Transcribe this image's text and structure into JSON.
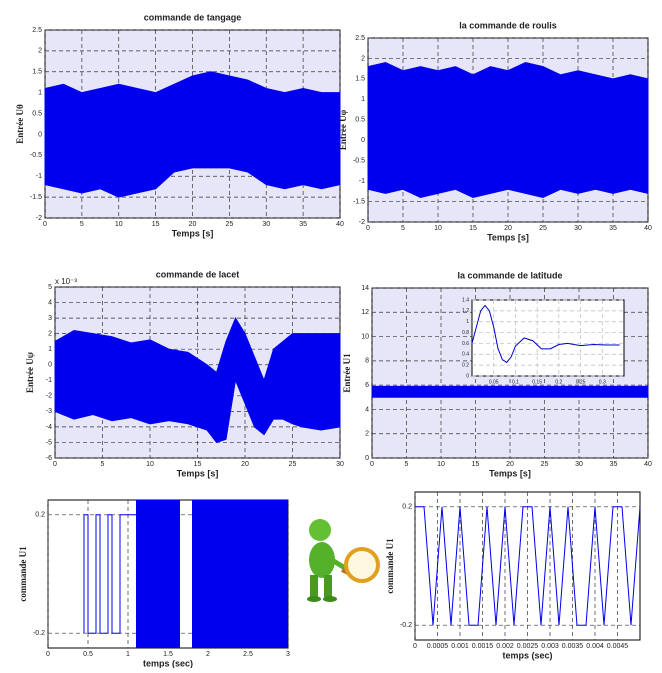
{
  "chart_data": [
    {
      "type": "band",
      "title": "commande de tangage",
      "xlabel": "Temps [s]",
      "ylabel": "Entrée Uθ",
      "color": "#0000ee",
      "grid": true,
      "xlim": [
        0,
        40
      ],
      "ylim": [
        -2,
        2.5
      ],
      "xticks": [
        0,
        5,
        10,
        15,
        20,
        25,
        30,
        35,
        40
      ],
      "yticks": [
        -2,
        -1.5,
        -1,
        -0.5,
        0,
        0.5,
        1,
        1.5,
        2,
        2.5
      ],
      "x": [
        0,
        2.5,
        5,
        7.5,
        10,
        12.5,
        15,
        17.5,
        20,
        22.5,
        25,
        27.5,
        30,
        32.5,
        35,
        37.5,
        40
      ],
      "upper": [
        1.1,
        1.2,
        1.0,
        1.1,
        1.2,
        1.1,
        1.0,
        1.2,
        1.4,
        1.5,
        1.4,
        1.3,
        1.1,
        1.0,
        1.1,
        1.0,
        1.0
      ],
      "lower": [
        -1.2,
        -1.3,
        -1.4,
        -1.3,
        -1.5,
        -1.4,
        -1.3,
        -0.9,
        -0.8,
        -0.8,
        -0.8,
        -0.9,
        -1.2,
        -1.3,
        -1.2,
        -1.3,
        -1.2
      ]
    },
    {
      "type": "band",
      "title": "la commande de roulis",
      "xlabel": "Temps [s]",
      "ylabel": "Entrée Uφ",
      "color": "#0000ee",
      "grid": true,
      "xlim": [
        0,
        40
      ],
      "ylim": [
        -2,
        2.5
      ],
      "xticks": [
        0,
        5,
        10,
        15,
        20,
        25,
        30,
        35,
        40
      ],
      "yticks": [
        -2,
        -1.5,
        -1,
        -0.5,
        0,
        0.5,
        1,
        1.5,
        2,
        2.5
      ],
      "x": [
        0,
        2.5,
        5,
        7.5,
        10,
        12.5,
        15,
        17.5,
        20,
        22.5,
        25,
        27.5,
        30,
        32.5,
        35,
        37.5,
        40
      ],
      "upper": [
        1.8,
        1.9,
        1.7,
        1.8,
        1.7,
        1.8,
        1.6,
        1.8,
        1.7,
        1.9,
        1.8,
        1.6,
        1.7,
        1.6,
        1.5,
        1.6,
        1.5
      ],
      "lower": [
        -1.2,
        -1.3,
        -1.2,
        -1.4,
        -1.3,
        -1.2,
        -1.4,
        -1.3,
        -1.2,
        -1.3,
        -1.4,
        -1.2,
        -1.3,
        -1.2,
        -1.3,
        -1.2,
        -1.3
      ]
    },
    {
      "type": "band",
      "title": "commande de lacet",
      "xlabel": "Temps [s]",
      "ylabel": "Entrée Uψ",
      "y_multiplier": "x 10⁻³",
      "color": "#0000ee",
      "grid": true,
      "xlim": [
        0,
        30
      ],
      "ylim": [
        -6,
        5
      ],
      "xticks": [
        0,
        5,
        10,
        15,
        20,
        25,
        30
      ],
      "yticks": [
        -6,
        -5,
        -4,
        -3,
        -2,
        -1,
        0,
        1,
        2,
        3,
        4,
        5
      ],
      "x": [
        0,
        2,
        4,
        6,
        8,
        10,
        12,
        14,
        16,
        17,
        18,
        19,
        20,
        21,
        22,
        23,
        24,
        25,
        26,
        28,
        30
      ],
      "upper": [
        1.5,
        2.2,
        2.0,
        1.8,
        1.4,
        1.6,
        1.0,
        0.8,
        0.0,
        -0.5,
        1.5,
        3.0,
        2.0,
        0.5,
        -1.0,
        1.0,
        1.5,
        2.0,
        2.0,
        2.0,
        2.0
      ],
      "lower": [
        -3.0,
        -3.5,
        -3.2,
        -3.6,
        -3.4,
        -3.8,
        -3.6,
        -3.8,
        -4.2,
        -5.0,
        -4.8,
        -1.0,
        -2.5,
        -4.0,
        -4.5,
        -3.5,
        -3.5,
        -3.8,
        -4.0,
        -4.2,
        -4.0
      ]
    },
    {
      "type": "band",
      "title": "la commande de latitude",
      "xlabel": "Temps [s]",
      "ylabel": "Entrée U1",
      "color": "#0000ee",
      "grid": true,
      "xlim": [
        0,
        40
      ],
      "ylim": [
        0,
        14
      ],
      "xticks": [
        0,
        5,
        10,
        15,
        20,
        25,
        30,
        35,
        40
      ],
      "yticks": [
        0,
        2,
        4,
        6,
        8,
        10,
        12,
        14
      ],
      "x": [
        0,
        40
      ],
      "upper": [
        5.9,
        5.9
      ],
      "lower": [
        5.0,
        5.0
      ]
    },
    {
      "type": "line",
      "color": "#0000cc",
      "grid": true,
      "xlim": [
        0,
        0.35
      ],
      "ylim": [
        0,
        1.4
      ],
      "xticks": [
        0.05,
        0.1,
        0.15,
        0.2,
        0.25,
        0.3
      ],
      "yticks": [
        0,
        0.2,
        0.4,
        0.6,
        0.8,
        1,
        1.2,
        1.4
      ],
      "x": [
        0,
        0.01,
        0.02,
        0.03,
        0.04,
        0.05,
        0.06,
        0.07,
        0.08,
        0.09,
        0.1,
        0.12,
        0.14,
        0.16,
        0.18,
        0.2,
        0.22,
        0.25,
        0.28,
        0.31,
        0.34
      ],
      "values": [
        0.6,
        0.9,
        1.2,
        1.3,
        1.2,
        0.9,
        0.5,
        0.3,
        0.25,
        0.35,
        0.55,
        0.7,
        0.65,
        0.5,
        0.5,
        0.58,
        0.6,
        0.56,
        0.58,
        0.57,
        0.57
      ]
    },
    {
      "type": "line",
      "xlabel": "temps (sec)",
      "ylabel": "commande U1",
      "color": "#0000ee",
      "grid": true,
      "xlim": [
        0,
        3
      ],
      "ylim": [
        -0.25,
        0.25
      ],
      "xticks": [
        0,
        0.5,
        1,
        1.5,
        2,
        2.5,
        3
      ],
      "yticks": [
        -0.2,
        0.2
      ],
      "x": [
        0.45,
        0.45,
        0.5,
        0.5,
        0.6,
        0.6,
        0.65,
        0.65,
        0.75,
        0.75,
        0.8,
        0.8,
        0.9,
        0.9,
        1.1
      ],
      "values": [
        -0.2,
        0.2,
        0.2,
        -0.2,
        -0.2,
        0.2,
        0.2,
        -0.2,
        -0.2,
        0.2,
        0.2,
        -0.2,
        -0.2,
        0.2,
        0.2
      ],
      "fill_ranges": [
        [
          1.1,
          1.65
        ],
        [
          1.8,
          3
        ]
      ]
    },
    {
      "type": "line",
      "xlabel": "temps (sec)",
      "ylabel": "commande U1",
      "color": "#0000ee",
      "grid": true,
      "xlim": [
        0,
        0.005
      ],
      "ylim": [
        -0.25,
        0.25
      ],
      "xticks": [
        0,
        0.0005,
        0.001,
        0.0015,
        0.002,
        0.0025,
        0.003,
        0.0035,
        0.004,
        0.0045
      ],
      "yticks": [
        -0.2,
        0.2
      ],
      "x": [
        0,
        0.0002,
        0.0004,
        0.0006,
        0.0008,
        0.001,
        0.0012,
        0.0014,
        0.0016,
        0.0018,
        0.002,
        0.0022,
        0.0024,
        0.0026,
        0.0028,
        0.003,
        0.0032,
        0.0034,
        0.0036,
        0.0038,
        0.004,
        0.0042,
        0.0044,
        0.0046,
        0.0048,
        0.005
      ],
      "values": [
        0.2,
        0.2,
        -0.2,
        0.2,
        -0.2,
        0.2,
        -0.2,
        -0.2,
        0.2,
        -0.2,
        0.2,
        -0.2,
        0.2,
        0.2,
        -0.2,
        0.2,
        -0.2,
        0.2,
        -0.2,
        -0.2,
        0.2,
        -0.2,
        0.2,
        0.2,
        -0.2,
        0.2
      ]
    }
  ]
}
